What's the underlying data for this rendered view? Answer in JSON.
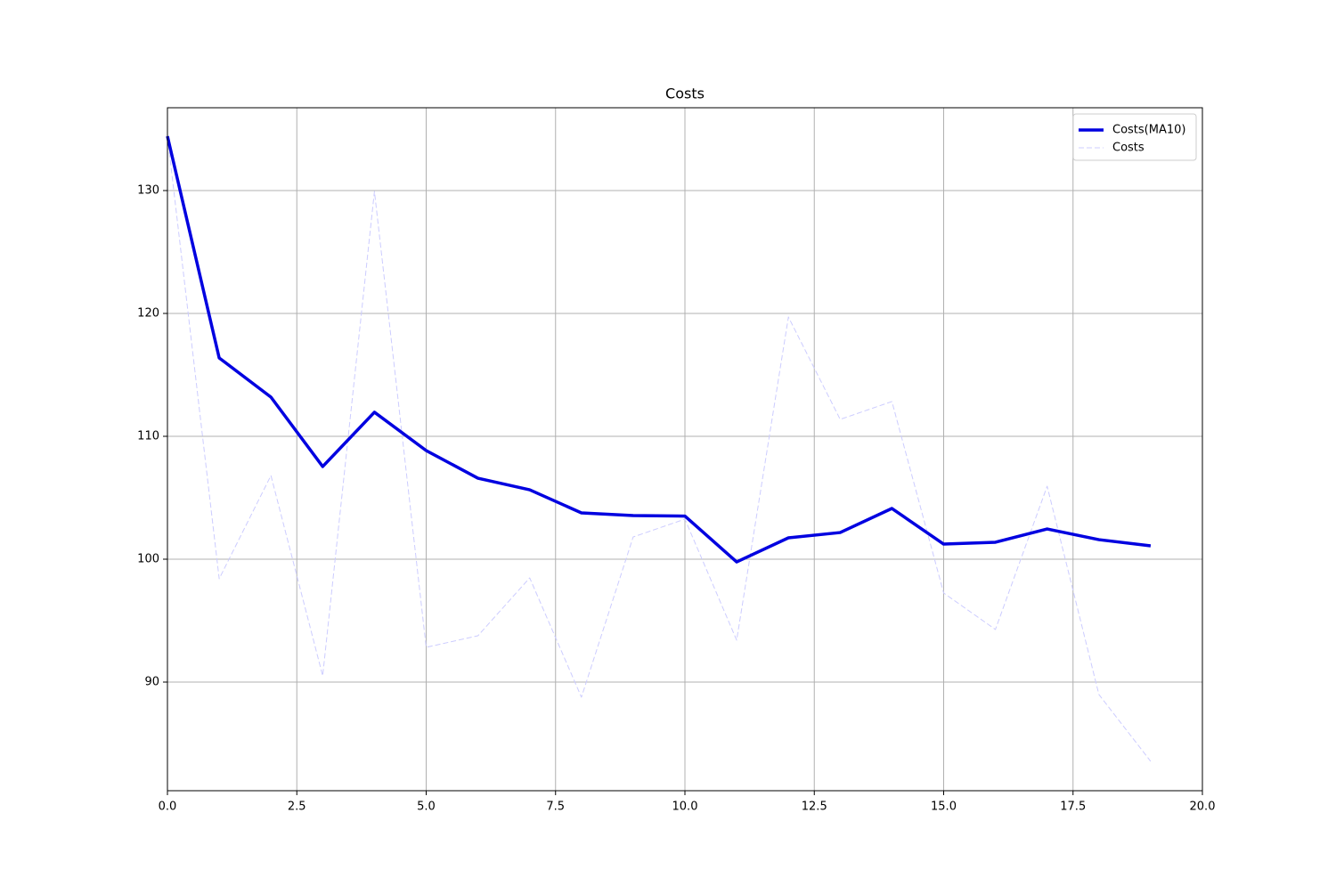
{
  "chart_data": {
    "type": "line",
    "title": "Costs",
    "x": [
      0,
      1,
      2,
      3,
      4,
      5,
      6,
      7,
      8,
      9,
      10,
      11,
      12,
      13,
      14,
      15,
      16,
      17,
      18,
      19
    ],
    "series": [
      {
        "name": "Costs(MA10)",
        "color": "#0000e0",
        "style": "solid",
        "values": [
          134.42,
          116.38,
          113.19,
          107.54,
          111.96,
          108.84,
          106.59,
          105.65,
          103.77,
          103.55,
          103.51,
          99.78,
          101.74,
          102.17,
          104.13,
          101.23,
          101.38,
          102.46,
          101.59,
          101.09
        ]
      },
      {
        "name": "Costs",
        "color": "#ccccff",
        "style": "dashed",
        "values": [
          134.42,
          98.41,
          106.81,
          90.51,
          129.93,
          92.83,
          93.77,
          98.48,
          88.77,
          101.81,
          103.26,
          93.41,
          119.71,
          111.38,
          112.83,
          97.25,
          94.28,
          105.94,
          88.99,
          83.55
        ]
      }
    ],
    "xlim": [
      0,
      20
    ],
    "xticks": [
      {
        "value": 0,
        "label": "0.0"
      },
      {
        "value": 2.5,
        "label": "2.5"
      },
      {
        "value": 5,
        "label": "5.0"
      },
      {
        "value": 7.5,
        "label": "7.5"
      },
      {
        "value": 10,
        "label": "10.0"
      },
      {
        "value": 12.5,
        "label": "12.5"
      },
      {
        "value": 15,
        "label": "15.0"
      },
      {
        "value": 17.5,
        "label": "17.5"
      },
      {
        "value": 20,
        "label": "20.0"
      }
    ],
    "ylim": [
      81.16,
      136.74
    ],
    "yticks": [
      90,
      100,
      110,
      120,
      130
    ],
    "grid": true,
    "legend": "upper right"
  }
}
